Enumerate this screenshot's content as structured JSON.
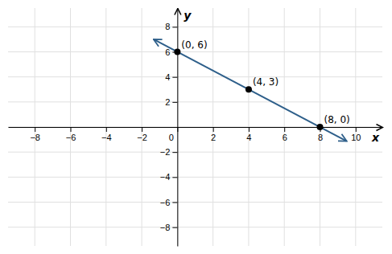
{
  "chart_data": {
    "type": "line",
    "x_label": "x",
    "y_label": "y",
    "xlim": [
      -9.5,
      11.5
    ],
    "ylim": [
      -9.5,
      9.5
    ],
    "xticks": [
      {
        "value": -8,
        "label": "−8"
      },
      {
        "value": -6,
        "label": "−6"
      },
      {
        "value": -4,
        "label": "−4"
      },
      {
        "value": -2,
        "label": "−2"
      },
      0,
      2,
      4,
      6,
      8,
      10
    ],
    "yticks": [
      {
        "value": -8,
        "label": "−8"
      },
      {
        "value": -6,
        "label": "−6"
      },
      {
        "value": -4,
        "label": "−4"
      },
      {
        "value": -2,
        "label": "−2"
      },
      {
        "value": 0,
        "label": null
      },
      2,
      4,
      6,
      8
    ],
    "grid": true,
    "data_labels": true,
    "series": [
      {
        "type": "line",
        "color": "#2E5F8A",
        "marker": "arrow",
        "x": [
          -1.333,
          9.5
        ],
        "values": [
          7.0,
          -1.125
        ]
      },
      {
        "type": "scatter",
        "color": "black",
        "marker": "circle",
        "x": [
          0,
          4,
          8
        ],
        "values": [
          6,
          3,
          0
        ],
        "value_labels": [
          "(0, 6)",
          "(4, 3)",
          "(8, 0)"
        ]
      }
    ]
  }
}
